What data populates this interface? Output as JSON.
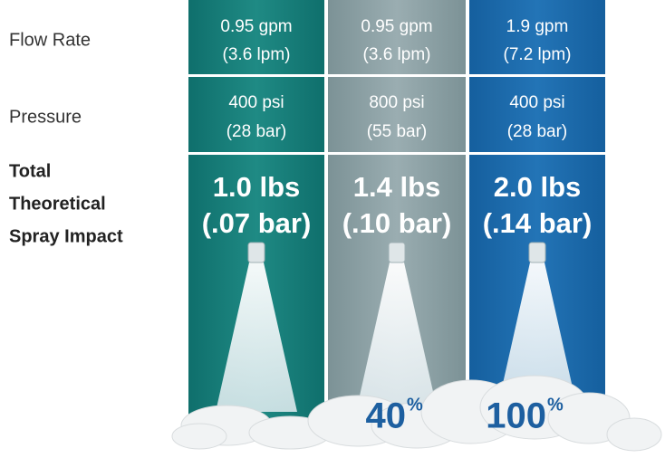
{
  "rows": [
    {
      "label": "Flow Rate",
      "cells": [
        [
          "0.95 gpm",
          "(3.6 lpm)"
        ],
        [
          "0.95 gpm",
          "(3.6 lpm)"
        ],
        [
          "1.9 gpm",
          "(7.2 lpm)"
        ]
      ]
    },
    {
      "label": "Pressure",
      "cells": [
        [
          "400 psi",
          "(28 bar)"
        ],
        [
          "800 psi",
          "(55 bar)"
        ],
        [
          "400 psi",
          "(28 bar)"
        ]
      ]
    }
  ],
  "impact": {
    "label": [
      "Total",
      "Theoretical",
      "Spray Impact"
    ],
    "cells": [
      [
        "1.0 lbs",
        "(.07 bar)"
      ],
      [
        "1.4 lbs",
        "(.10 bar)"
      ],
      [
        "2.0 lbs",
        "(.14 bar)"
      ]
    ]
  },
  "percentages": [
    {
      "number": "40",
      "unit": "%"
    },
    {
      "number": "100",
      "unit": "%"
    }
  ]
}
